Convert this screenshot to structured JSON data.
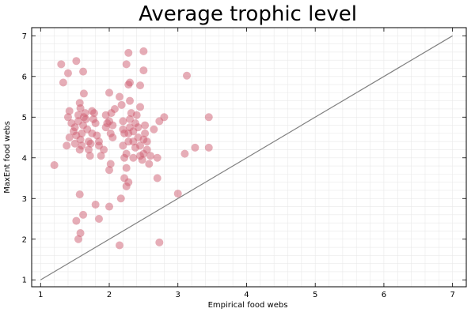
{
  "chart_data": {
    "type": "scatter",
    "title": "Average trophic level",
    "xlabel": "Empirical food webs",
    "ylabel": "MaxEnt food webs",
    "xlim": [
      0.87,
      7.2
    ],
    "ylim": [
      0.83,
      7.2
    ],
    "xticks": [
      "1",
      "2",
      "3",
      "4",
      "5",
      "6",
      "7"
    ],
    "yticks": [
      "1",
      "2",
      "3",
      "4",
      "5",
      "6",
      "7"
    ],
    "grid": true,
    "legend": false,
    "reference_line": {
      "from": [
        1,
        1
      ],
      "to": [
        7,
        7
      ],
      "color": "#808080"
    },
    "point_color": "#cd5c6f",
    "point_opacity": 0.5,
    "points": [
      [
        1.2,
        3.82
      ],
      [
        1.3,
        6.3
      ],
      [
        1.33,
        5.85
      ],
      [
        1.4,
        6.08
      ],
      [
        1.52,
        6.38
      ],
      [
        1.62,
        6.12
      ],
      [
        1.38,
        4.3
      ],
      [
        1.42,
        4.5
      ],
      [
        1.45,
        4.85
      ],
      [
        1.4,
        5.0
      ],
      [
        1.42,
        5.15
      ],
      [
        1.48,
        4.65
      ],
      [
        1.5,
        4.75
      ],
      [
        1.5,
        4.35
      ],
      [
        1.52,
        4.55
      ],
      [
        1.55,
        4.9
      ],
      [
        1.55,
        5.05
      ],
      [
        1.57,
        4.2
      ],
      [
        1.58,
        4.45
      ],
      [
        1.6,
        4.6
      ],
      [
        1.6,
        4.3
      ],
      [
        1.62,
        4.8
      ],
      [
        1.63,
        5.0
      ],
      [
        1.65,
        5.1
      ],
      [
        1.57,
        5.35
      ],
      [
        1.58,
        5.22
      ],
      [
        1.63,
        5.58
      ],
      [
        1.66,
        4.95
      ],
      [
        1.68,
        4.7
      ],
      [
        1.7,
        4.4
      ],
      [
        1.7,
        4.2
      ],
      [
        1.72,
        4.05
      ],
      [
        1.73,
        4.35
      ],
      [
        1.75,
        4.6
      ],
      [
        1.77,
        4.95
      ],
      [
        1.75,
        5.15
      ],
      [
        1.78,
        5.1
      ],
      [
        1.8,
        4.85
      ],
      [
        1.82,
        4.55
      ],
      [
        1.85,
        4.4
      ],
      [
        1.85,
        4.3
      ],
      [
        1.88,
        4.05
      ],
      [
        1.92,
        4.2
      ],
      [
        1.95,
        5.05
      ],
      [
        1.97,
        4.85
      ],
      [
        1.95,
        4.75
      ],
      [
        2.0,
        4.9
      ],
      [
        2.02,
        4.6
      ],
      [
        2.05,
        4.8
      ],
      [
        2.03,
        5.1
      ],
      [
        2.08,
        5.2
      ],
      [
        2.05,
        4.5
      ],
      [
        2.0,
        3.7
      ],
      [
        2.02,
        3.85
      ],
      [
        2.0,
        5.6
      ],
      [
        2.15,
        5.5
      ],
      [
        2.18,
        5.3
      ],
      [
        2.2,
        4.9
      ],
      [
        2.2,
        4.7
      ],
      [
        2.22,
        4.6
      ],
      [
        2.2,
        4.3
      ],
      [
        2.22,
        4.0
      ],
      [
        2.25,
        4.1
      ],
      [
        2.25,
        3.75
      ],
      [
        2.28,
        4.4
      ],
      [
        2.28,
        4.6
      ],
      [
        2.3,
        4.75
      ],
      [
        2.3,
        4.95
      ],
      [
        2.3,
        5.4
      ],
      [
        2.32,
        5.1
      ],
      [
        2.35,
        4.65
      ],
      [
        2.35,
        4.4
      ],
      [
        2.35,
        4.0
      ],
      [
        2.38,
        4.25
      ],
      [
        2.38,
        4.85
      ],
      [
        2.4,
        5.05
      ],
      [
        2.42,
        4.75
      ],
      [
        2.42,
        4.5
      ],
      [
        2.45,
        4.3
      ],
      [
        2.45,
        4.05
      ],
      [
        2.48,
        3.95
      ],
      [
        2.5,
        4.1
      ],
      [
        2.5,
        4.45
      ],
      [
        2.52,
        4.6
      ],
      [
        2.52,
        4.8
      ],
      [
        2.55,
        4.4
      ],
      [
        2.55,
        4.2
      ],
      [
        2.58,
        3.85
      ],
      [
        2.6,
        4.05
      ],
      [
        2.65,
        4.7
      ],
      [
        2.7,
        4.0
      ],
      [
        2.73,
        4.9
      ],
      [
        2.8,
        5.0
      ],
      [
        2.28,
        6.58
      ],
      [
        2.5,
        6.62
      ],
      [
        2.25,
        6.3
      ],
      [
        2.3,
        5.85
      ],
      [
        2.28,
        5.8
      ],
      [
        2.45,
        5.78
      ],
      [
        2.5,
        6.15
      ],
      [
        2.45,
        5.25
      ],
      [
        2.22,
        3.5
      ],
      [
        2.25,
        3.3
      ],
      [
        2.28,
        3.4
      ],
      [
        2.17,
        3.0
      ],
      [
        1.57,
        3.1
      ],
      [
        1.52,
        2.45
      ],
      [
        1.62,
        2.6
      ],
      [
        1.58,
        2.15
      ],
      [
        1.55,
        2.0
      ],
      [
        1.8,
        2.85
      ],
      [
        1.85,
        2.5
      ],
      [
        2.0,
        2.8
      ],
      [
        2.15,
        1.85
      ],
      [
        2.73,
        1.92
      ],
      [
        2.7,
        3.5
      ],
      [
        3.0,
        3.12
      ],
      [
        3.1,
        4.1
      ],
      [
        3.13,
        6.02
      ],
      [
        3.25,
        4.25
      ],
      [
        3.45,
        4.25
      ],
      [
        3.45,
        5.0
      ]
    ]
  }
}
